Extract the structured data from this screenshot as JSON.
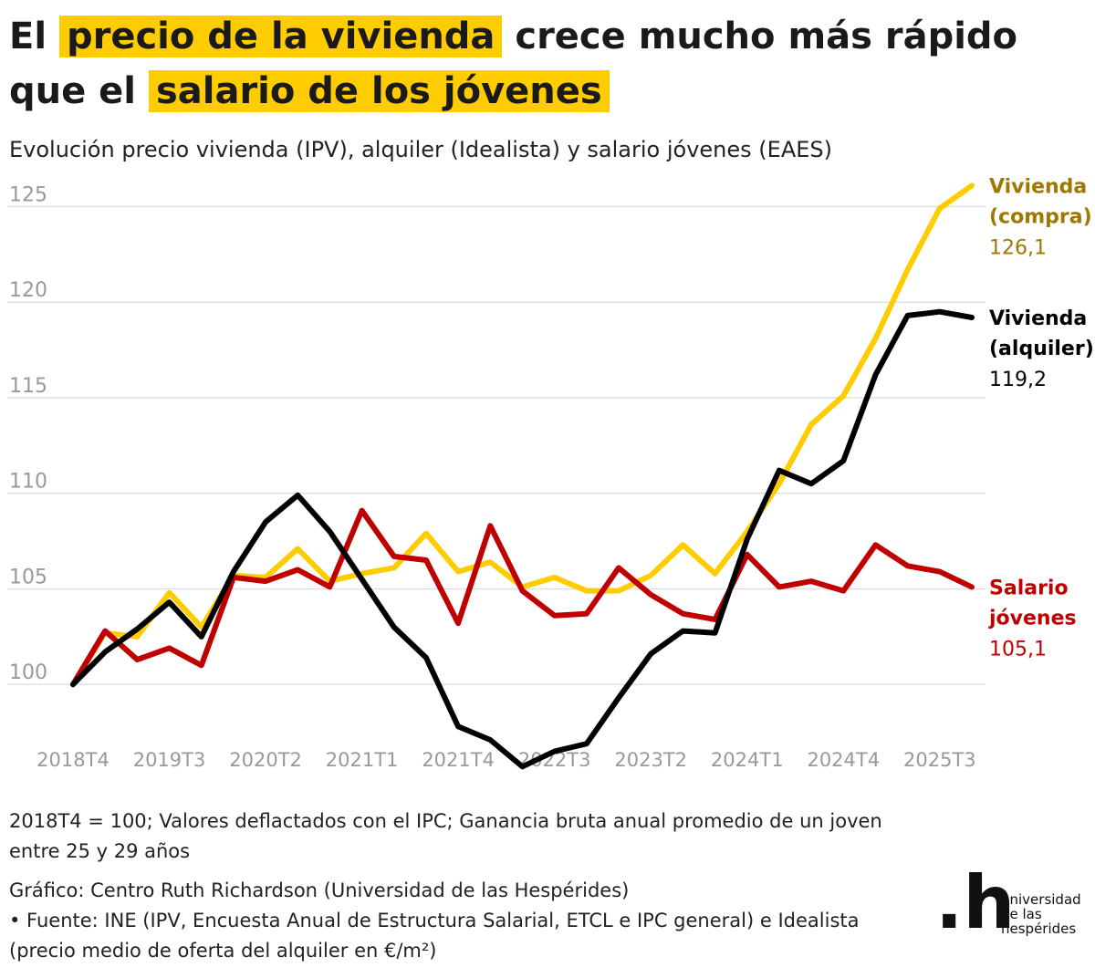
{
  "title": {
    "part1": "El",
    "highlight1": "precio de la vivienda",
    "part2": "crece mucho más rápido",
    "part3": "que el",
    "highlight2": "salario de los jóvenes"
  },
  "subtitle": "Evolución precio vivienda (IPV), alquiler (Idealista) y salario jóvenes (EAES)",
  "colors": {
    "highlight": "#ffcc00",
    "compra": "#ffcc00",
    "alquiler": "#000000",
    "salario": "#c00000",
    "compra_label": "#a07800",
    "grid": "#e0e0e0",
    "axis_text": "#999999"
  },
  "chart_data": {
    "type": "line",
    "x": [
      "2018T4",
      "2019T1",
      "2019T2",
      "2019T3",
      "2019T4",
      "2020T1",
      "2020T2",
      "2020T3",
      "2020T4",
      "2021T1",
      "2021T2",
      "2021T3",
      "2021T4",
      "2022T1",
      "2022T2",
      "2022T3",
      "2022T4",
      "2023T1",
      "2023T2",
      "2023T3",
      "2023T4",
      "2024T1",
      "2024T2",
      "2024T3",
      "2024T4",
      "2025T1",
      "2025T2",
      "2025T3",
      "2025T4"
    ],
    "xticks": [
      "2018T4",
      "2019T3",
      "2020T2",
      "2021T1",
      "2021T4",
      "2022T3",
      "2023T2",
      "2024T1",
      "2024T4",
      "2025T3"
    ],
    "ylim": [
      95,
      126.5
    ],
    "yticks": [
      100,
      105,
      110,
      115,
      120,
      125
    ],
    "grid": true,
    "series": [
      {
        "key": "compra",
        "name_line1": "Vivienda",
        "name_line2": "(compra)",
        "last_label": "126,1",
        "values": [
          100,
          102.7,
          102.5,
          104.8,
          103.0,
          105.7,
          105.6,
          107.1,
          105.4,
          105.8,
          106.1,
          107.9,
          105.9,
          106.4,
          105.1,
          105.6,
          104.9,
          104.9,
          105.7,
          107.3,
          105.8,
          108.0,
          110.5,
          113.6,
          115.1,
          118.1,
          121.7,
          124.9,
          126.1
        ]
      },
      {
        "key": "alquiler",
        "name_line1": "Vivienda",
        "name_line2": "(alquiler)",
        "last_label": "119,2",
        "values": [
          100,
          101.7,
          102.9,
          104.3,
          102.5,
          105.9,
          108.5,
          109.9,
          108.0,
          105.5,
          103.0,
          101.4,
          97.8,
          97.1,
          95.7,
          96.5,
          96.9,
          99.3,
          101.6,
          102.8,
          102.7,
          107.6,
          111.2,
          110.5,
          111.7,
          116.2,
          119.3,
          119.5,
          119.2
        ]
      },
      {
        "key": "salario",
        "name_line1": "Salario",
        "name_line2": "jóvenes",
        "last_label": "105,1",
        "values": [
          100,
          102.8,
          101.3,
          101.9,
          101.0,
          105.6,
          105.4,
          106.0,
          105.1,
          109.1,
          106.7,
          106.5,
          103.2,
          108.3,
          104.9,
          103.6,
          103.7,
          106.1,
          104.7,
          103.7,
          103.4,
          106.8,
          105.1,
          105.4,
          104.9,
          107.3,
          106.2,
          105.9,
          105.1
        ]
      }
    ]
  },
  "notes": {
    "line1": "2018T4 = 100; Valores deflactados con el IPC; Ganancia bruta anual promedio de un joven entre 25 y 29 años",
    "line2": "Gráfico: Centro Ruth Richardson (Universidad de las Hespérides)",
    "line3": " • Fuente: INE (IPV, Encuesta Anual de Estructura Salarial, ETCL e IPC general) e Idealista (precio medio de oferta del alquiler en €/m²)"
  },
  "logo": {
    "mark": ".h",
    "line1": "universidad",
    "line2": "de las",
    "line3": "hespérides"
  }
}
